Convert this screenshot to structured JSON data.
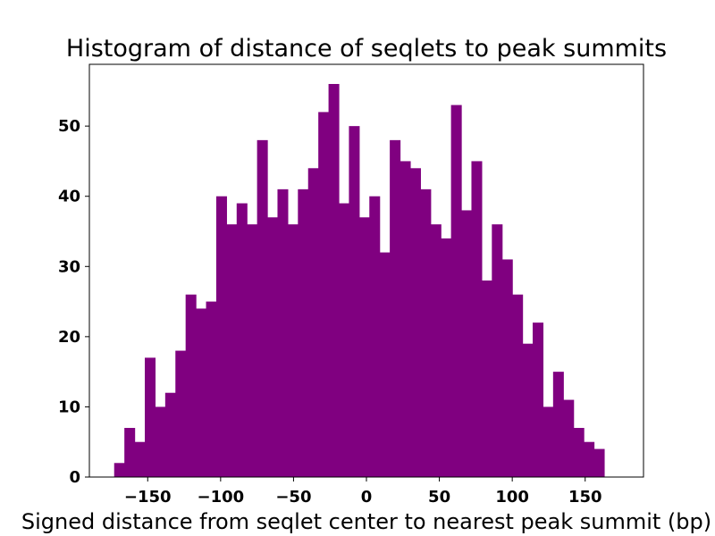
{
  "chart_data": {
    "type": "bar",
    "title": "Histogram of distance of seqlets to peak summits",
    "xlabel": "Signed distance from seqlet center to nearest peak summit (bp)",
    "ylabel": "",
    "bar_color": "#800080",
    "bin_start": -173,
    "bin_width": 7,
    "values": [
      2,
      7,
      5,
      17,
      10,
      12,
      18,
      26,
      24,
      25,
      40,
      36,
      39,
      36,
      48,
      37,
      41,
      36,
      41,
      44,
      52,
      56,
      39,
      50,
      37,
      40,
      32,
      48,
      45,
      44,
      41,
      36,
      34,
      53,
      38,
      45,
      28,
      36,
      31,
      26,
      19,
      22,
      10,
      15,
      11,
      7,
      5,
      4
    ],
    "xlim": [
      -190,
      190
    ],
    "ylim": [
      0,
      58.8
    ],
    "xticks": [
      -150,
      -100,
      -50,
      0,
      50,
      100,
      150
    ],
    "xtick_labels": [
      "−150",
      "−100",
      "−50",
      "0",
      "50",
      "100",
      "150"
    ],
    "yticks": [
      0,
      10,
      20,
      30,
      40,
      50
    ],
    "ytick_labels": [
      "0",
      "10",
      "20",
      "30",
      "40",
      "50"
    ],
    "grid": false,
    "legend": "none"
  }
}
